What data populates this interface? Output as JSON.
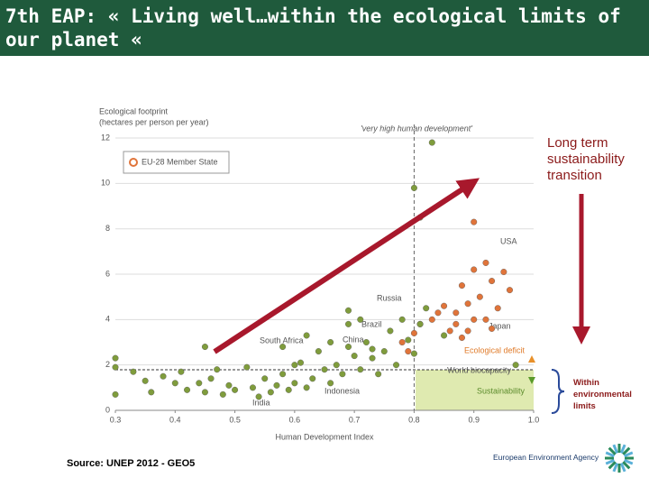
{
  "slide": {
    "title": "7th EAP: « Living well…within the ecological limits of our planet «",
    "transition_label": "Long term sustainability transition",
    "limits_label": "Within environmental limits",
    "source": "Source: UNEP 2012 - GEO5",
    "logo": "European Environment Agency"
  },
  "chart_data": {
    "type": "scatter",
    "ylabel": [
      "Ecological footprint",
      "(hectares per person per year)"
    ],
    "xlabel": "Human Development Index",
    "xlim": [
      0.3,
      1.0
    ],
    "xticks": [
      {
        "value": 0.3,
        "label": "0.3"
      },
      {
        "value": 0.4,
        "label": "0.4"
      },
      {
        "value": 0.5,
        "label": "0.5"
      },
      {
        "value": 0.6,
        "label": "0.6"
      },
      {
        "value": 0.7,
        "label": "0.7"
      },
      {
        "value": 0.8,
        "label": "0.8"
      },
      {
        "value": 0.9,
        "label": "0.9"
      },
      {
        "value": 1,
        "label": "1.0"
      }
    ],
    "ylim": [
      0,
      12.2
    ],
    "yticks": [
      0,
      2,
      4,
      6,
      8,
      10,
      12
    ],
    "grid": true,
    "legend": "top-left",
    "annotations": [
      "'very high human development'",
      "USA",
      "Russia",
      "Brazil",
      "China",
      "South Africa",
      "Indonesia",
      "India",
      "Japan",
      "Ecological deficit",
      "World biocapacity",
      "Sustainability"
    ],
    "series": [
      {
        "name": "EU-28 Member State",
        "color": "#e0743a",
        "x": [
          0.79,
          0.8,
          0.81,
          0.83,
          0.85,
          0.86,
          0.87,
          0.88,
          0.88,
          0.89,
          0.9,
          0.9,
          0.91,
          0.92,
          0.92,
          0.93,
          0.94,
          0.95,
          0.87,
          0.78,
          0.84,
          0.9,
          0.93,
          0.96,
          0.89
        ],
        "values": [
          2.6,
          3.4,
          3.8,
          4.0,
          4.6,
          3.5,
          4.3,
          5.5,
          3.2,
          4.7,
          6.2,
          8.3,
          5.0,
          4.0,
          6.5,
          5.7,
          4.5,
          6.1,
          3.8,
          3.0,
          4.3,
          4.0,
          3.6,
          5.3,
          3.5
        ]
      },
      {
        "color": "#7f9c3c",
        "x": [
          0.3,
          0.3,
          0.33,
          0.35,
          0.36,
          0.38,
          0.4,
          0.41,
          0.42,
          0.44,
          0.45,
          0.46,
          0.47,
          0.48,
          0.49,
          0.5,
          0.52,
          0.53,
          0.54,
          0.55,
          0.56,
          0.57,
          0.58,
          0.59,
          0.6,
          0.61,
          0.62,
          0.63,
          0.64,
          0.65,
          0.66,
          0.67,
          0.68,
          0.69,
          0.7,
          0.71,
          0.72,
          0.73,
          0.74,
          0.75,
          0.76,
          0.77,
          0.78,
          0.79,
          0.8,
          0.81,
          0.82,
          0.85,
          0.8,
          0.81,
          0.83,
          0.58,
          0.62,
          0.66,
          0.71,
          0.6,
          0.97,
          0.3,
          0.69,
          0.73,
          0.69,
          0.45
        ],
        "values": [
          2.3,
          0.7,
          1.7,
          1.3,
          0.8,
          1.5,
          1.2,
          1.7,
          0.9,
          1.2,
          0.8,
          1.4,
          1.8,
          0.7,
          1.1,
          0.9,
          1.9,
          1.0,
          0.6,
          1.4,
          0.8,
          1.1,
          1.6,
          0.9,
          1.2,
          2.1,
          1.0,
          1.4,
          2.6,
          1.8,
          1.2,
          2.0,
          1.6,
          2.8,
          2.4,
          1.8,
          3.0,
          2.3,
          1.6,
          2.6,
          3.5,
          2.0,
          4.0,
          3.1,
          2.5,
          3.8,
          4.5,
          3.3,
          9.8,
          8.5,
          11.8,
          2.8,
          3.3,
          3.0,
          4.0,
          2.0,
          2.0,
          1.9,
          3.8,
          2.7,
          4.4,
          2.8
        ]
      }
    ]
  }
}
